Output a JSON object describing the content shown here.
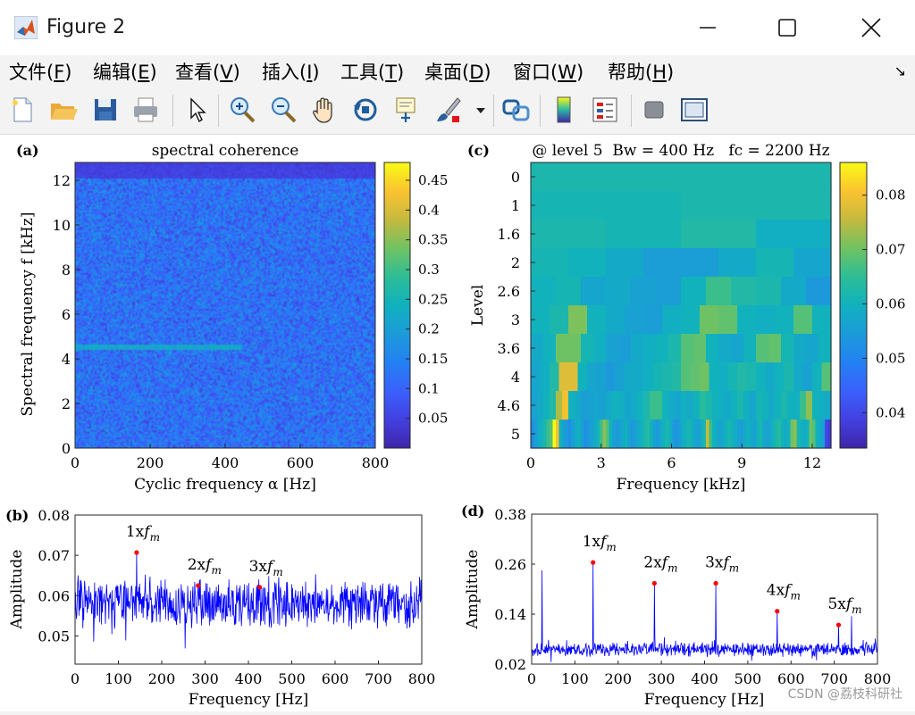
{
  "window": {
    "title": "Figure 2"
  },
  "menu": [
    {
      "text": "文件(",
      "key": "F",
      "end": ")"
    },
    {
      "text": "编辑(",
      "key": "E",
      "end": ")"
    },
    {
      "text": "查看(",
      "key": "V",
      "end": ")"
    },
    {
      "text": "插入(",
      "key": "I",
      "end": ")"
    },
    {
      "text": "工具(",
      "key": "T",
      "end": ")"
    },
    {
      "text": "桌面(",
      "key": "D",
      "end": ")"
    },
    {
      "text": "窗口(",
      "key": "W",
      "end": ")"
    },
    {
      "text": "帮助(",
      "key": "H",
      "end": ")"
    }
  ],
  "toolbar_icons": [
    "new-file-icon",
    "open-folder-icon",
    "save-icon",
    "print-icon",
    "pointer-icon",
    "zoom-in-icon",
    "zoom-out-icon",
    "pan-hand-icon",
    "rotate-3d-icon",
    "data-cursor-icon",
    "brush-icon",
    "brush-dropdown-icon",
    "link-plot-icon",
    "colorbar-icon",
    "legend-icon",
    "hide-plot-tools-icon",
    "show-plot-tools-icon"
  ],
  "watermark": "CSDN @荔枝科研社",
  "colors": {
    "plot_blue": "#0000ff",
    "marker_red": "#ff0000",
    "parula_low": "#3e26a8",
    "parula_high": "#f9fb15"
  },
  "chart_data": [
    {
      "panel": "(a)",
      "type": "heatmap",
      "title": "spectral coherence",
      "xlabel": "Cyclic frequency α [Hz]",
      "ylabel": "Spectral frequency f [kHz]",
      "xlim": [
        0,
        800
      ],
      "ylim": [
        0,
        12.8
      ],
      "xticks": [
        "0",
        "200",
        "400",
        "600",
        "800"
      ],
      "yticks": [
        "0",
        "2",
        "4",
        "6",
        "8",
        "10",
        "12"
      ],
      "colorbar": {
        "ticks": [
          "0.05",
          "0.1",
          "0.15",
          "0.2",
          "0.25",
          "0.3",
          "0.35",
          "0.4",
          "0.45"
        ],
        "values": [
          0.05,
          0.1,
          0.15,
          0.2,
          0.25,
          0.3,
          0.35,
          0.4,
          0.45
        ],
        "range": [
          0.0,
          0.48
        ]
      },
      "notes": {
        "mean_value": 0.12,
        "highlight_band_kHz": 4.5,
        "highlight_value": 0.22
      }
    },
    {
      "panel": "(c)",
      "type": "heatmap",
      "title": "@ level 5  Bw = 400 Hz   fc = 2200 Hz",
      "xlabel": "Frequency [kHz]",
      "ylabel": "Level",
      "xlim": [
        0,
        12.8
      ],
      "xticks": [
        "0",
        "3",
        "6",
        "9",
        "12"
      ],
      "yticks": [
        "0",
        "1",
        "1.6",
        "2",
        "2.6",
        "3",
        "3.6",
        "4",
        "4.6",
        "5"
      ],
      "colorbar": {
        "ticks": [
          "0.04",
          "0.05",
          "0.06",
          "0.07",
          "0.08"
        ],
        "values": [
          0.04,
          0.05,
          0.06,
          0.07,
          0.08
        ],
        "range": [
          0.0335,
          0.086
        ]
      },
      "rows": [
        [
          0.062
        ],
        [
          0.061,
          0.062
        ],
        [
          0.062,
          0.061,
          0.063,
          0.059
        ],
        [
          0.061,
          0.06,
          0.058,
          0.055,
          0.055,
          0.058,
          0.061,
          0.057
        ],
        [
          0.06,
          0.061,
          0.057,
          0.058,
          0.056,
          0.055,
          0.06,
          0.066,
          0.063,
          0.062,
          0.058,
          0.054
        ],
        [
          0.06,
          0.062,
          0.071,
          0.06,
          0.058,
          0.056,
          0.055,
          0.059,
          0.06,
          0.07,
          0.069,
          0.06,
          0.059,
          0.06,
          0.068,
          0.06
        ],
        [
          0.058,
          0.06,
          0.07,
          0.07,
          0.061,
          0.059,
          0.056,
          0.055,
          0.058,
          0.059,
          0.06,
          0.062,
          0.068,
          0.069,
          0.06,
          0.058,
          0.057,
          0.06,
          0.068,
          0.069,
          0.061,
          0.058,
          0.057,
          0.06
        ],
        [
          0.057,
          0.059,
          0.063,
          0.078,
          0.078,
          0.06,
          0.057,
          0.056,
          0.054,
          0.056,
          0.058,
          0.058,
          0.059,
          0.061,
          0.062,
          0.063,
          0.068,
          0.069,
          0.07,
          0.06,
          0.059,
          0.061,
          0.063,
          0.062,
          0.06,
          0.058,
          0.06,
          0.062,
          0.058,
          0.056,
          0.06,
          0.068
        ],
        [
          0.056,
          0.058,
          0.06,
          0.063,
          0.074,
          0.08,
          0.06,
          0.058,
          0.055,
          0.056,
          0.057,
          0.056,
          0.058,
          0.06,
          0.059,
          0.057,
          0.058,
          0.06,
          0.062,
          0.066,
          0.066,
          0.06,
          0.058,
          0.057,
          0.059,
          0.058,
          0.06,
          0.064,
          0.062,
          0.06,
          0.059,
          0.058,
          0.06,
          0.062,
          0.059,
          0.057,
          0.061,
          0.06,
          0.058,
          0.06,
          0.062,
          0.06,
          0.059,
          0.066,
          0.072,
          0.06,
          0.059,
          0.058
        ],
        [
          0.052,
          0.055,
          0.058,
          0.06,
          0.062,
          0.066,
          0.068,
          0.086,
          0.08,
          0.06,
          0.056,
          0.054,
          0.052,
          0.055,
          0.058,
          0.06,
          0.055,
          0.052,
          0.054,
          0.056,
          0.058,
          0.06,
          0.066,
          0.072,
          0.068,
          0.06,
          0.056,
          0.054,
          0.056,
          0.058,
          0.06,
          0.056,
          0.054,
          0.056,
          0.058,
          0.06,
          0.062,
          0.064,
          0.06,
          0.056,
          0.054,
          0.058,
          0.06,
          0.062,
          0.06,
          0.055,
          0.053,
          0.055,
          0.058,
          0.06,
          0.062,
          0.06,
          0.057,
          0.055,
          0.058,
          0.062,
          0.076,
          0.066,
          0.06,
          0.058,
          0.056,
          0.058,
          0.06,
          0.062,
          0.06,
          0.058,
          0.056,
          0.055,
          0.058,
          0.06,
          0.058,
          0.056,
          0.06,
          0.062,
          0.058,
          0.056,
          0.057,
          0.06,
          0.062,
          0.064,
          0.06,
          0.058,
          0.06,
          0.07,
          0.072,
          0.062,
          0.06,
          0.058,
          0.06,
          0.07,
          0.068,
          0.06,
          0.058,
          0.056,
          0.04,
          0.038
        ]
      ]
    },
    {
      "panel": "(b)",
      "type": "line",
      "xlabel": "Frequency [Hz]",
      "ylabel": "Amplitude",
      "xlim": [
        0,
        800
      ],
      "ylim": [
        0.043,
        0.08
      ],
      "xticks": [
        0,
        100,
        200,
        300,
        400,
        500,
        600,
        700,
        800
      ],
      "yticks": [
        0.05,
        0.06,
        0.07,
        0.08
      ],
      "ytick_labels": [
        "0.05",
        "0.06",
        "0.07",
        "0.08"
      ],
      "baseline": 0.058,
      "noise": 0.0045,
      "peaks": [
        {
          "x": 142,
          "y": 0.0707,
          "label": "1x",
          "sub": "m"
        },
        {
          "x": 284,
          "y": 0.0625,
          "label": "2x",
          "sub": "m"
        },
        {
          "x": 426,
          "y": 0.0621,
          "label": "3x",
          "sub": "m"
        }
      ]
    },
    {
      "panel": "(d)",
      "type": "line",
      "xlabel": "Frequency [Hz]",
      "ylabel": "Amplitude",
      "xlim": [
        0,
        800
      ],
      "ylim": [
        0.02,
        0.38
      ],
      "xticks": [
        0,
        100,
        200,
        300,
        400,
        500,
        600,
        700,
        800
      ],
      "yticks": [
        0.02,
        0.14,
        0.26,
        0.38
      ],
      "ytick_labels": [
        "0.02",
        "0.14",
        "0.26",
        "0.38"
      ],
      "baseline": 0.055,
      "noise": 0.012,
      "extra_spikes": [
        {
          "x": 24,
          "y": 0.245
        },
        {
          "x": 740,
          "y": 0.135
        }
      ],
      "peaks": [
        {
          "x": 142,
          "y": 0.264,
          "label": "1x",
          "sub": "m"
        },
        {
          "x": 284,
          "y": 0.214,
          "label": "2x",
          "sub": "m"
        },
        {
          "x": 426,
          "y": 0.214,
          "label": "3x",
          "sub": "m"
        },
        {
          "x": 568,
          "y": 0.147,
          "label": "4x",
          "sub": "m"
        },
        {
          "x": 710,
          "y": 0.114,
          "label": "5x",
          "sub": "m"
        }
      ]
    }
  ]
}
